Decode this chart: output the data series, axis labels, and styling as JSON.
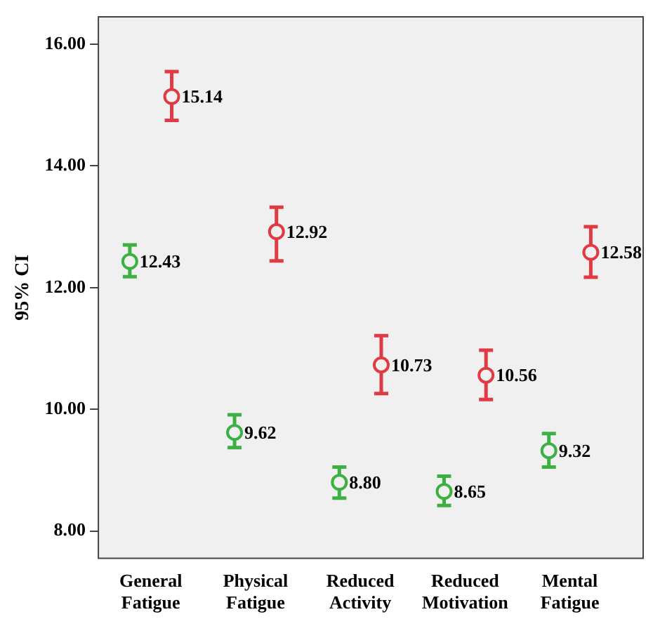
{
  "chart_data": {
    "type": "scatter",
    "ylabel": "95% CI",
    "categories": [
      "General Fatigue",
      "Physical Fatigue",
      "Reduced Activity",
      "Reduced Motivation",
      "Mental Fatigue"
    ],
    "series": [
      {
        "color": "#3cb043",
        "values": [
          12.43,
          9.62,
          8.8,
          8.65,
          9.32
        ],
        "errors": [
          [
            12.18,
            12.7
          ],
          [
            9.37,
            9.91
          ],
          [
            8.54,
            9.05
          ],
          [
            8.42,
            8.9
          ],
          [
            9.05,
            9.6
          ]
        ],
        "value_labels": [
          "12.43",
          "9.62",
          "8.80",
          "8.65",
          "9.32"
        ]
      },
      {
        "color": "#e03a45",
        "values": [
          15.14,
          12.92,
          10.73,
          10.56,
          12.58
        ],
        "errors": [
          [
            14.75,
            15.55
          ],
          [
            12.44,
            13.32
          ],
          [
            10.26,
            11.21
          ],
          [
            10.16,
            10.97
          ],
          [
            12.17,
            13.0
          ]
        ],
        "value_labels": [
          "15.14",
          "12.92",
          "10.73",
          "10.56",
          "12.58"
        ]
      }
    ],
    "ylim": [
      7.55,
      16.45
    ],
    "yticks": [
      {
        "value": 8,
        "label": "8.00"
      },
      {
        "value": 10,
        "label": "10.00"
      },
      {
        "value": 12,
        "label": "12.00"
      },
      {
        "value": 14,
        "label": "14.00"
      },
      {
        "value": 16,
        "label": "16.00"
      }
    ],
    "grid": false,
    "legend": false,
    "marker": "circle"
  }
}
